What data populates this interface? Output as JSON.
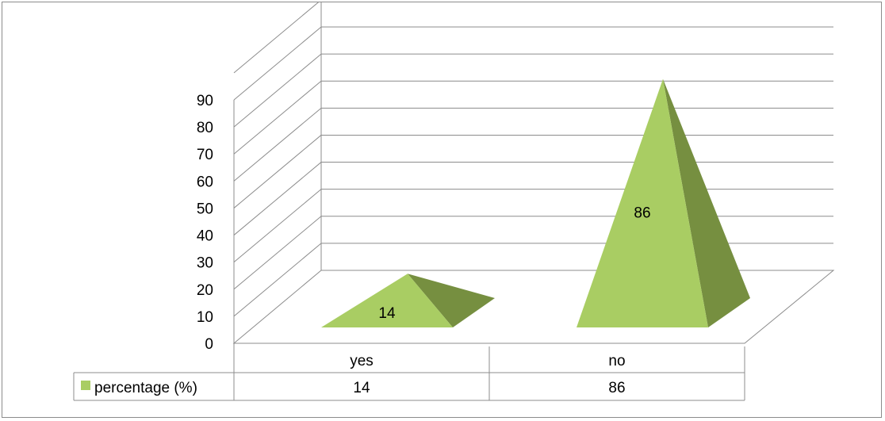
{
  "chart_data": {
    "type": "bar",
    "style": "3d-pyramid",
    "categories": [
      "yes",
      "no"
    ],
    "series": [
      {
        "name": "percentage (%)",
        "values": [
          14,
          86
        ],
        "color": "#a9cd63",
        "side_color": "#768f40"
      }
    ],
    "ylim": [
      0,
      90
    ],
    "yticks": [
      0,
      10,
      20,
      30,
      40,
      50,
      60,
      70,
      80,
      90
    ],
    "grid": true,
    "data_labels": true,
    "data_table": true,
    "legend_placement": "data-table"
  }
}
